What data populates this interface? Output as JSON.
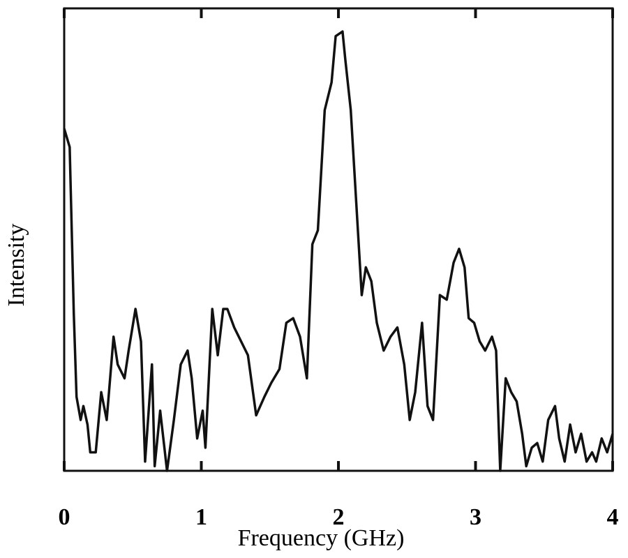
{
  "chart_data": {
    "type": "line",
    "x_label": "Frequency (GHz)",
    "y_label": "Intensity",
    "xlim": [
      0,
      4
    ],
    "xticks": [
      0,
      1,
      2,
      3,
      4
    ],
    "ylim": [
      0,
      100
    ],
    "color": "#111111",
    "series": [
      {
        "x": [
          0,
          0.04,
          0.07,
          0.09,
          0.12,
          0.14,
          0.17,
          0.19,
          0.23,
          0.27,
          0.31,
          0.36,
          0.39,
          0.44,
          0.47,
          0.52,
          0.56,
          0.59,
          0.64,
          0.66,
          0.7,
          0.75,
          0.8,
          0.85,
          0.9,
          0.93,
          0.97,
          1.01,
          1.03,
          1.08,
          1.12,
          1.16,
          1.19,
          1.24,
          1.29,
          1.34,
          1.4,
          1.46,
          1.51,
          1.57,
          1.62,
          1.67,
          1.72,
          1.77,
          1.81,
          1.85,
          1.9,
          1.95,
          1.98,
          2.03,
          2.05,
          2.09,
          2.13,
          2.17,
          2.2,
          2.24,
          2.28,
          2.33,
          2.38,
          2.43,
          2.48,
          2.52,
          2.56,
          2.61,
          2.65,
          2.69,
          2.74,
          2.79,
          2.84,
          2.88,
          2.92,
          2.95,
          2.99,
          3.03,
          3.07,
          3.12,
          3.15,
          3.18,
          3.22,
          3.26,
          3.3,
          3.34,
          3.37,
          3.41,
          3.45,
          3.49,
          3.53,
          3.58,
          3.61,
          3.65,
          3.69,
          3.73,
          3.77,
          3.81,
          3.85,
          3.88,
          3.92,
          3.96,
          4
        ],
        "values": [
          74,
          70,
          34,
          16,
          11,
          14,
          10,
          4,
          4,
          17,
          11,
          29,
          23,
          20,
          26,
          35,
          28,
          2,
          23,
          1,
          13,
          0,
          11,
          23,
          26,
          20,
          7,
          13,
          5,
          35,
          25,
          35,
          35,
          31,
          28,
          25,
          12,
          16,
          19,
          22,
          32,
          33,
          29,
          20,
          49,
          52,
          78,
          84,
          94,
          95,
          89,
          78,
          58,
          38,
          44,
          41,
          32,
          26,
          29,
          31,
          23,
          11,
          17,
          32,
          14,
          11,
          38,
          37,
          45,
          48,
          44,
          33,
          32,
          28,
          26,
          29,
          26,
          0,
          20,
          17,
          15,
          8,
          1,
          5,
          6,
          2,
          11,
          14,
          7,
          2,
          10,
          4,
          8,
          2,
          4,
          2,
          7,
          4,
          8
        ]
      }
    ]
  }
}
